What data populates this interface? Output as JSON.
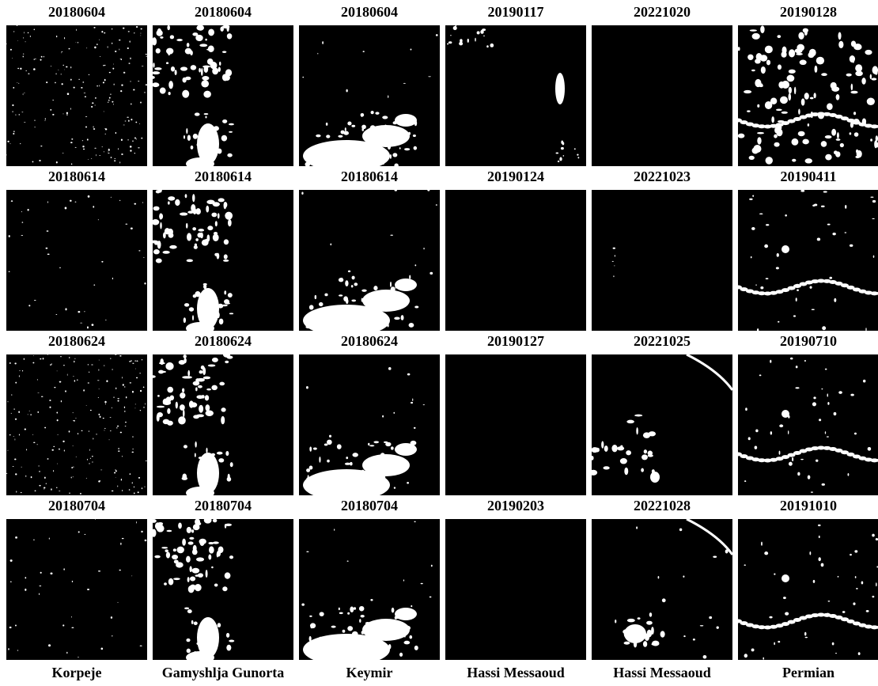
{
  "grid": {
    "rows": [
      [
        "20180604",
        "20180604",
        "20180604",
        "20190117",
        "20221020",
        "20190128"
      ],
      [
        "20180614",
        "20180614",
        "20180614",
        "20190124",
        "20221023",
        "20190411"
      ],
      [
        "20180624",
        "20180624",
        "20180624",
        "20190127",
        "20221025",
        "20190710"
      ],
      [
        "20180704",
        "20180704",
        "20180704",
        "20190203",
        "20221028",
        "20191010"
      ]
    ],
    "columns": [
      "Korpeje",
      "Gamyshlja Gunorta",
      "Keymir",
      "Hassi Messaoud",
      "Hassi Messaoud",
      "Permian"
    ]
  }
}
